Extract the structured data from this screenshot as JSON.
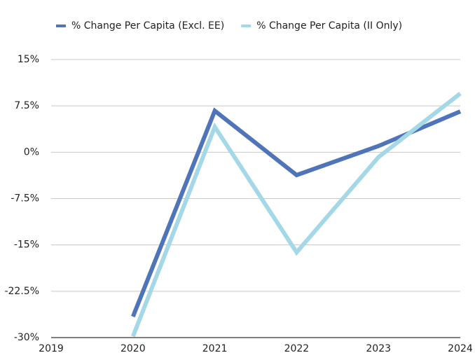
{
  "chart_data": {
    "type": "line",
    "categories": [
      "2019",
      "2020",
      "2021",
      "2022",
      "2023",
      "2024"
    ],
    "series": [
      {
        "name": "% Change Per Capita (Excl. EE)",
        "color": "#4f74b8",
        "values": [
          null,
          -26.6,
          6.7,
          -3.7,
          1.0,
          6.6
        ]
      },
      {
        "name": "% Change Per Capita (II Only)",
        "color": "#a4d8e6",
        "values": [
          null,
          -29.8,
          4.1,
          -16.2,
          -0.8,
          9.5
        ]
      }
    ],
    "ylim": [
      -30,
      15
    ],
    "yticks": [
      {
        "value": 15,
        "label": "15%"
      },
      {
        "value": 7.5,
        "label": "7.5%"
      },
      {
        "value": 0,
        "label": "0%"
      },
      {
        "value": -7.5,
        "label": "-7.5%"
      },
      {
        "value": -15,
        "label": "-15%"
      },
      {
        "value": -22.5,
        "label": "-22.5%"
      },
      {
        "value": -30,
        "label": "-30%"
      }
    ],
    "grid": true
  }
}
